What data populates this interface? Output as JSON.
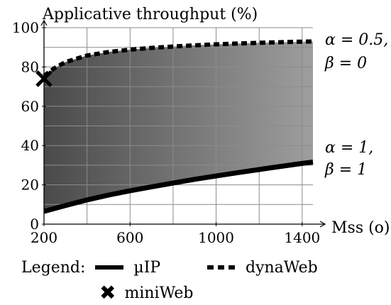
{
  "chart_data": {
    "type": "area",
    "ylabel": "Applicative throughput (%)",
    "xlabel": "Mss (o)",
    "xlim": [
      200,
      1450
    ],
    "ylim": [
      0,
      100
    ],
    "xticks": [
      200,
      600,
      1000,
      1400
    ],
    "yticks": [
      0,
      20,
      40,
      60,
      80,
      100
    ],
    "series": [
      {
        "name": "µIP",
        "style": "solid",
        "annotation": [
          "α = 1,",
          "β = 1"
        ],
        "x": [
          200,
          300,
          400,
          500,
          600,
          700,
          800,
          900,
          1000,
          1100,
          1200,
          1300,
          1400,
          1450
        ],
        "y": [
          6.5,
          9.5,
          12.3,
          14.8,
          17.0,
          19.0,
          20.9,
          22.8,
          24.5,
          26.2,
          27.8,
          29.4,
          30.9,
          31.6
        ]
      },
      {
        "name": "dynaWeb",
        "style": "dashed",
        "annotation": [
          "α = 0.5,",
          "β = 0"
        ],
        "x": [
          200,
          250,
          300,
          400,
          500,
          600,
          700,
          800,
          900,
          1000,
          1100,
          1200,
          1300,
          1400,
          1450
        ],
        "y": [
          75.5,
          79.5,
          82.5,
          85.8,
          87.6,
          88.8,
          89.7,
          90.4,
          91.0,
          91.5,
          91.9,
          92.3,
          92.6,
          92.9,
          93.0
        ]
      }
    ],
    "points": [
      {
        "name": "miniWeb",
        "marker": "x",
        "x": 200,
        "y": 74
      }
    ],
    "fill_between": {
      "lower": "µIP",
      "upper": "dynaWeb",
      "gradient": [
        "#4a4a4a",
        "#9e9e9e"
      ]
    },
    "grid": true,
    "legend_title": "Legend:",
    "legend_placement": "bottom"
  }
}
